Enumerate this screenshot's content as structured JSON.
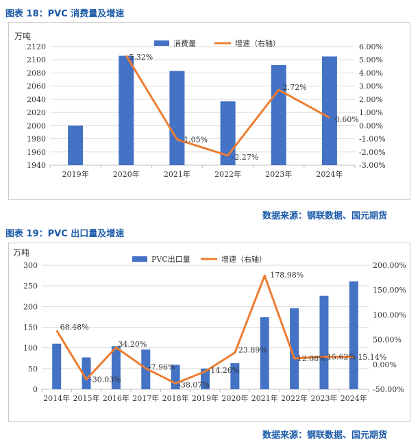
{
  "chart1_title": "图表 18：PVC 消费量及增速",
  "chart1_source": "数据来源：钢联数据、国元期货",
  "chart2_title": "图表 19：PVC 出口量及增速",
  "chart2_source": "数据来源：钢联数据、国元期货",
  "colors": {
    "bar": "#4472c4",
    "line": "#ed7d31",
    "title": "#1a5aa8"
  },
  "chart_data": [
    {
      "type": "bar",
      "unit": "万吨",
      "categories": [
        "2019年",
        "2020年",
        "2021年",
        "2022年",
        "2023年",
        "2024年"
      ],
      "series": [
        {
          "name": "消费量",
          "type": "bar",
          "axis": "left",
          "values": [
            2000,
            2106,
            2083,
            2037,
            2092,
            2105
          ]
        },
        {
          "name": "增速（右轴）",
          "type": "line",
          "axis": "right",
          "values": [
            null,
            5.32,
            -1.05,
            -2.27,
            2.72,
            0.6
          ]
        }
      ],
      "data_labels": [
        "",
        "5.32%",
        "-1.05%",
        "-2.27%",
        "2.72%",
        "0.60%"
      ],
      "ylim": [
        1940,
        2120
      ],
      "yticks": [
        "1940",
        "1960",
        "1980",
        "2000",
        "2020",
        "2040",
        "2060",
        "2080",
        "2100",
        "2120"
      ],
      "y2lim": [
        -3,
        6
      ],
      "y2ticks": [
        "-3.00%",
        "-2.00%",
        "-1.00%",
        "0.00%",
        "1.00%",
        "2.00%",
        "3.00%",
        "4.00%",
        "5.00%",
        "6.00%"
      ],
      "legend": "top"
    },
    {
      "type": "bar",
      "unit": "万吨",
      "categories": [
        "2014年",
        "2015年",
        "2016年",
        "2017年",
        "2018年",
        "2019年",
        "2020年",
        "2021年",
        "2022年",
        "2023年",
        "2024年"
      ],
      "series": [
        {
          "name": "PVC出口量",
          "type": "bar",
          "axis": "left",
          "values": [
            110,
            77,
            104,
            96,
            59,
            50,
            63,
            174,
            196,
            226,
            261
          ]
        },
        {
          "name": "增速（右轴）",
          "type": "line",
          "axis": "right",
          "values": [
            68.48,
            -30.03,
            34.2,
            -7.96,
            -38.07,
            -14.26,
            23.89,
            178.98,
            12.08,
            15.62,
            15.14
          ]
        }
      ],
      "data_labels": [
        "68.48%",
        "-30.03%",
        "34.20%",
        "-7.96%",
        "-38.07%",
        "-14.26%",
        "23.89%",
        "178.98%",
        "12.08%",
        "15.62%",
        "15.14%"
      ],
      "ylim": [
        0,
        300
      ],
      "yticks": [
        "0",
        "50",
        "100",
        "150",
        "200",
        "250",
        "300"
      ],
      "y2lim": [
        -50,
        200
      ],
      "y2ticks": [
        "-50.00%",
        "0.00%",
        "50.00%",
        "100.00%",
        "150.00%",
        "200.00%"
      ],
      "legend": "top"
    }
  ]
}
